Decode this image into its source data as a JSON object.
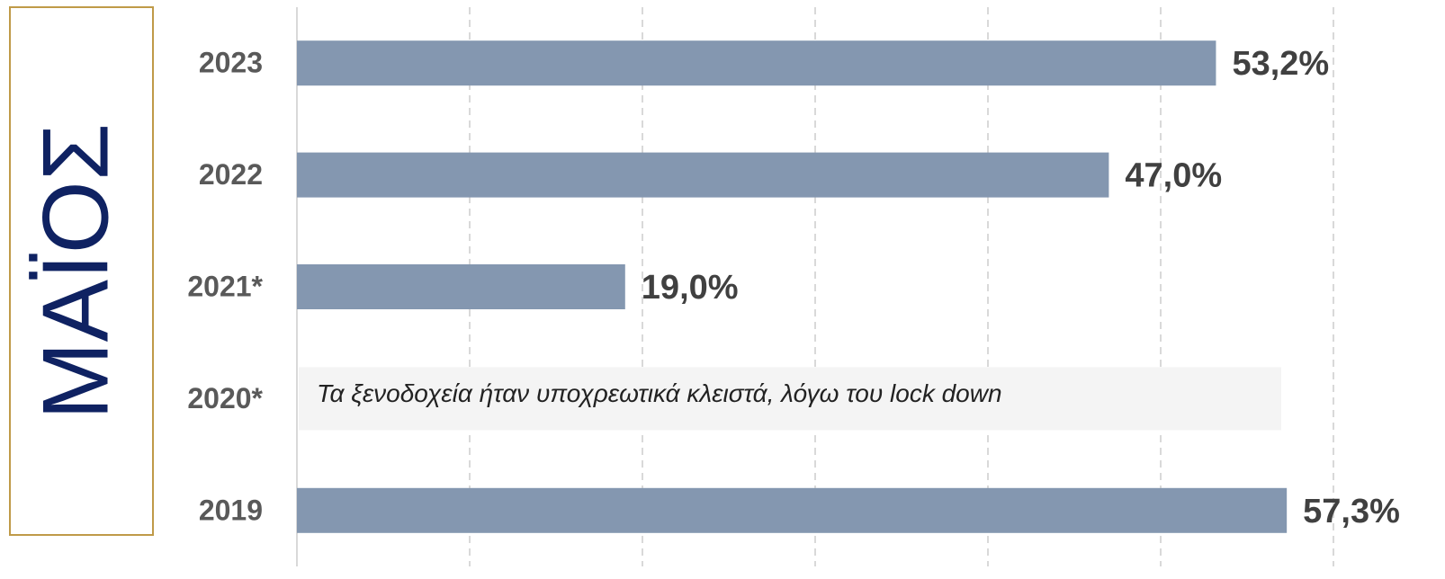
{
  "chart_data": {
    "type": "hbar",
    "side_label": "ΜΑΪΟΣ",
    "categories": [
      "2023",
      "2022",
      "2021*",
      "2020*",
      "2019"
    ],
    "values": [
      53.2,
      47.0,
      19.0,
      null,
      57.3
    ],
    "value_labels": [
      "53,2%",
      "47,0%",
      "19,0%",
      null,
      "57,3%"
    ],
    "color": "#8497b0",
    "xlim": [
      0,
      60
    ],
    "xticks": [
      0,
      10,
      20,
      30,
      40,
      50,
      60
    ],
    "grid": true,
    "annotations": [
      {
        "text": "Τα ξενοδοχεία ήταν υποχρεωτικά κλειστά, λόγω του lock down",
        "category": "2020*"
      }
    ]
  }
}
